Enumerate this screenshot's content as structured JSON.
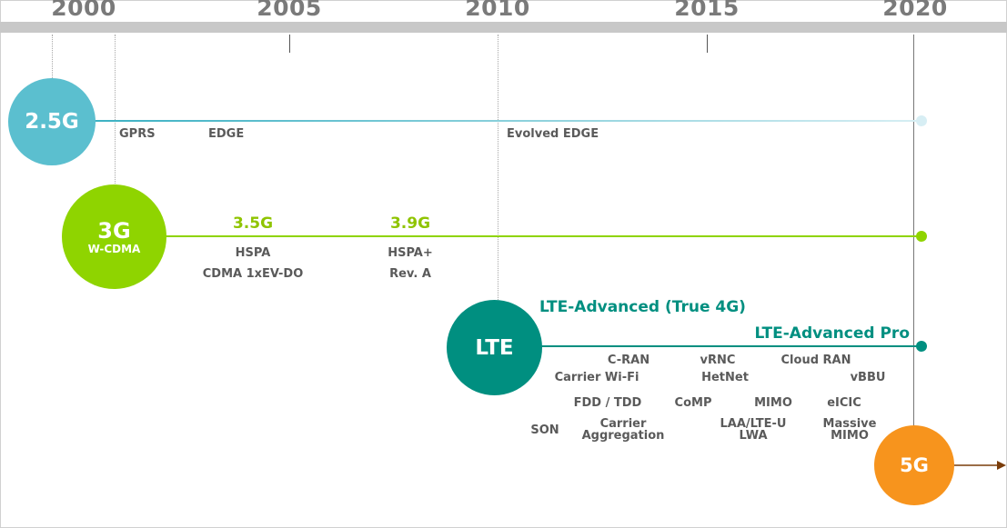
{
  "years": [
    "2000",
    "2005",
    "2010",
    "2015",
    "2020"
  ],
  "colors": {
    "g25": "#5bbfcf",
    "g3": "#8fd400",
    "lte": "#008f80",
    "g5": "#f7941d",
    "label": "#5a5a5a",
    "year": "#7a7a7a"
  },
  "rows": {
    "g25": {
      "name": "2.5G",
      "labels": [
        "GPRS",
        "EDGE",
        "Evolved EDGE"
      ]
    },
    "g3": {
      "name": "3G",
      "subname": "W-CDMA",
      "milestones": [
        "3.5G",
        "3.9G"
      ],
      "labels": [
        "HSPA",
        "CDMA 1xEV-DO",
        "HSPA+",
        "Rev. A"
      ]
    },
    "lte": {
      "name": "LTE",
      "milestones": [
        "LTE-Advanced (True 4G)",
        "LTE-Advanced Pro"
      ],
      "labels": [
        "C-RAN",
        "vRNC",
        "Cloud RAN",
        "Carrier Wi-Fi",
        "HetNet",
        "vBBU",
        "FDD / TDD",
        "CoMP",
        "MIMO",
        "eICIC",
        "SON",
        "Carrier Aggregation",
        "LAA/LTE-U LWA",
        "Massive MIMO"
      ]
    },
    "g5": {
      "name": "5G"
    }
  }
}
